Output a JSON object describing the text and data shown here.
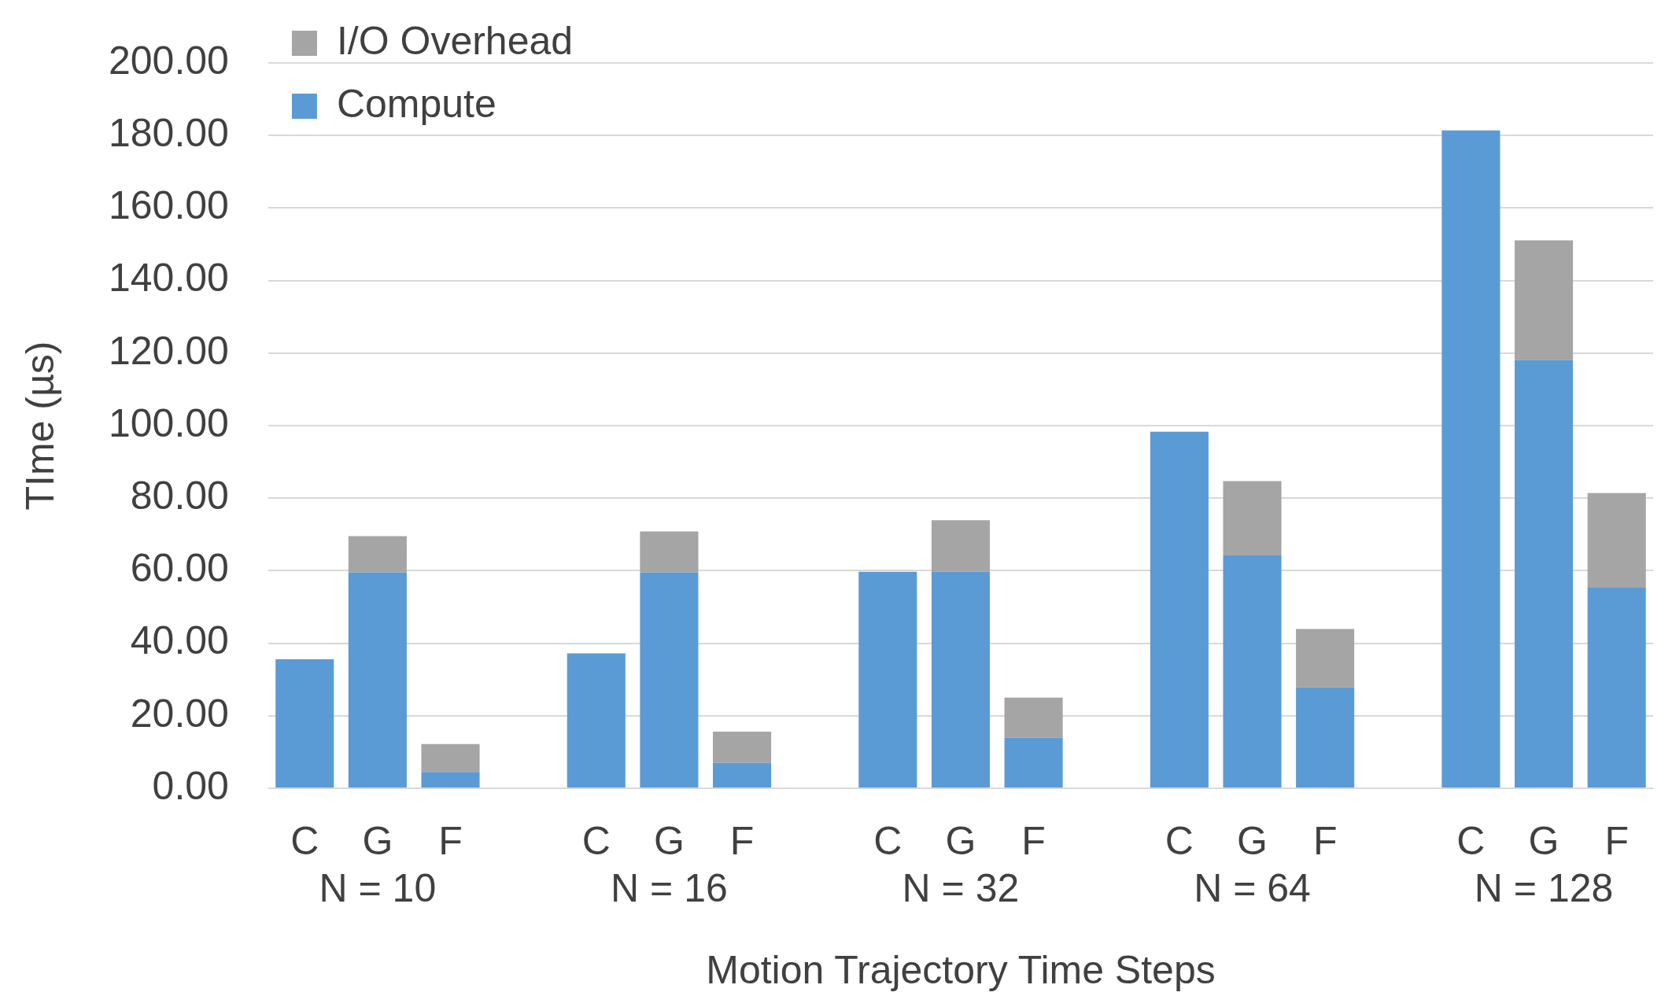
{
  "chart_data": {
    "type": "bar",
    "stacked": true,
    "xlabel": "Motion Trajectory Time Steps",
    "ylabel": "TIme (µs)",
    "categories": [
      "C",
      "G\nN = 10",
      "F",
      null,
      "C",
      "G\nN = 16",
      "F",
      null,
      "C",
      "G\nN = 32",
      "F",
      null,
      "C",
      "G\nN = 64",
      "F",
      null,
      "C",
      "G\nN = 128",
      "F"
    ],
    "series": [
      {
        "name": "Compute",
        "color": "#5b9bd5",
        "values": [
          35.6,
          59.5,
          4.5,
          null,
          37.2,
          59.5,
          7.0,
          null,
          59.7,
          59.7,
          14.0,
          null,
          98.3,
          64.2,
          27.8,
          null,
          181.4,
          118.1,
          55.3
        ]
      },
      {
        "name": "I/O Overhead",
        "color": "#a5a5a5",
        "values": [
          null,
          10.0,
          7.7,
          null,
          null,
          11.3,
          8.6,
          null,
          null,
          14.2,
          11.0,
          null,
          null,
          20.5,
          16.1,
          null,
          null,
          33.0,
          26.1
        ]
      }
    ],
    "ylim": [
      0,
      200
    ],
    "yticks": [
      {
        "value": 0,
        "label": "0.00"
      },
      {
        "value": 20,
        "label": "20.00"
      },
      {
        "value": 40,
        "label": "40.00"
      },
      {
        "value": 60,
        "label": "60.00"
      },
      {
        "value": 80,
        "label": "80.00"
      },
      {
        "value": 100,
        "label": "100.00"
      },
      {
        "value": 120,
        "label": "120.00"
      },
      {
        "value": 140,
        "label": "140.00"
      },
      {
        "value": 160,
        "label": "160.00"
      },
      {
        "value": 180,
        "label": "180.00"
      },
      {
        "value": 200,
        "label": "200.00"
      }
    ],
    "grid": "y",
    "legend": "top left"
  }
}
